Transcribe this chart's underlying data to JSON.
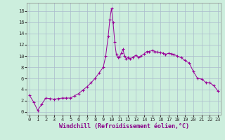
{
  "x": [
    0,
    0.5,
    1,
    1.5,
    2,
    2.5,
    3,
    3.5,
    4,
    4.5,
    5,
    5.5,
    6,
    6.5,
    7,
    7.5,
    8,
    8.5,
    9,
    9.3,
    9.6,
    9.8,
    10,
    10.2,
    10.4,
    10.6,
    10.8,
    11,
    11.2,
    11.4,
    11.6,
    11.8,
    12,
    12.3,
    12.6,
    13,
    13.3,
    13.6,
    14,
    14.3,
    14.6,
    15,
    15.3,
    15.6,
    16,
    16.3,
    16.6,
    17,
    17.3,
    17.6,
    18,
    18.5,
    19,
    19.5,
    20,
    20.5,
    21,
    21.5,
    22,
    22.5,
    23
  ],
  "y": [
    3.0,
    1.8,
    0.3,
    1.4,
    2.5,
    2.4,
    2.3,
    2.4,
    2.5,
    2.5,
    2.5,
    2.9,
    3.3,
    3.9,
    4.5,
    5.2,
    6.0,
    7.0,
    8.0,
    10.0,
    13.5,
    16.5,
    18.5,
    16.0,
    12.5,
    10.2,
    9.7,
    9.9,
    10.5,
    11.2,
    10.0,
    9.5,
    9.7,
    9.5,
    9.8,
    10.1,
    9.8,
    10.0,
    10.4,
    10.8,
    10.8,
    11.0,
    10.8,
    10.7,
    10.6,
    10.5,
    10.3,
    10.5,
    10.4,
    10.3,
    10.0,
    9.7,
    9.2,
    8.7,
    7.2,
    6.0,
    5.9,
    5.3,
    5.2,
    4.7,
    3.7
  ],
  "line_color": "#990099",
  "marker": "+",
  "bg_color": "#cceedd",
  "grid_color": "#aabbcc",
  "xlabel": "Windchill (Refroidissement éolien,°C)",
  "xlabel_color": "#880088",
  "ylim": [
    -0.5,
    19.5
  ],
  "xlim": [
    -0.3,
    23.3
  ],
  "xticks": [
    0,
    1,
    2,
    3,
    4,
    5,
    6,
    7,
    8,
    9,
    10,
    11,
    12,
    13,
    14,
    15,
    16,
    17,
    18,
    19,
    20,
    21,
    22,
    23
  ],
  "yticks": [
    0,
    2,
    4,
    6,
    8,
    10,
    12,
    14,
    16,
    18
  ],
  "tick_fontsize": 5.0,
  "xlabel_fontsize": 6.0
}
